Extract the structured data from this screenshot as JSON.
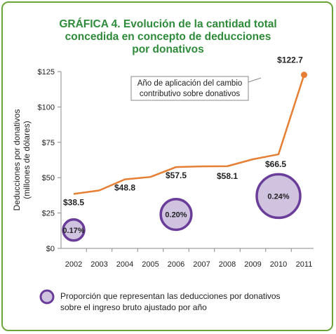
{
  "chart_data": {
    "type": "line",
    "title": "GRÁFICA 4. Evolución de la cantidad total\nconcedida en concepto de deducciones\npor donativos",
    "ylabel_line1": "Deducciones por donativos",
    "ylabel_line2": "(millones de dólares)",
    "x": [
      "2002",
      "2003",
      "2004",
      "2005",
      "2006",
      "2007",
      "2008",
      "2009",
      "2010",
      "2011"
    ],
    "y": [
      38.5,
      41.0,
      48.8,
      50.5,
      57.5,
      58.0,
      58.1,
      63.0,
      66.5,
      122.7
    ],
    "ylim": [
      0,
      125
    ],
    "yticks": [
      "$0",
      "$25",
      "$50",
      "$75",
      "$100",
      "$125"
    ],
    "ytick_values": [
      0,
      25,
      50,
      75,
      100,
      125
    ],
    "data_labels": [
      {
        "index": 0,
        "text": "$38.5"
      },
      {
        "index": 2,
        "text": "$48.8"
      },
      {
        "index": 4,
        "text": "$57.5"
      },
      {
        "index": 6,
        "text": "$58.1"
      },
      {
        "index": 8,
        "text": "$66.5"
      },
      {
        "index": 9,
        "text": "$122.7"
      }
    ],
    "bubbles": [
      {
        "index": 0,
        "y": 13,
        "value": 0.17,
        "label": "0.17%"
      },
      {
        "index": 4,
        "y": 24,
        "value": 0.2,
        "label": "0.20%"
      },
      {
        "index": 8,
        "y": 37,
        "value": 0.24,
        "label": "0.24%"
      }
    ],
    "annotation": {
      "line1": "Año de aplicación del cambio",
      "line2": "contributivo sobre donativos",
      "points_to_index": 9
    },
    "legend_line1": "Proporción que representan las deducciones por donativos",
    "legend_line2": "sobre el ingreso bruto ajustado por año",
    "legend_placement": "bottom",
    "grid": false,
    "colors": {
      "line": "#e67e33",
      "bubble_fill": "#cfc3df",
      "bubble_stroke": "#6a3d9a",
      "title": "#2e8b3a",
      "border": "#6ba539"
    }
  }
}
